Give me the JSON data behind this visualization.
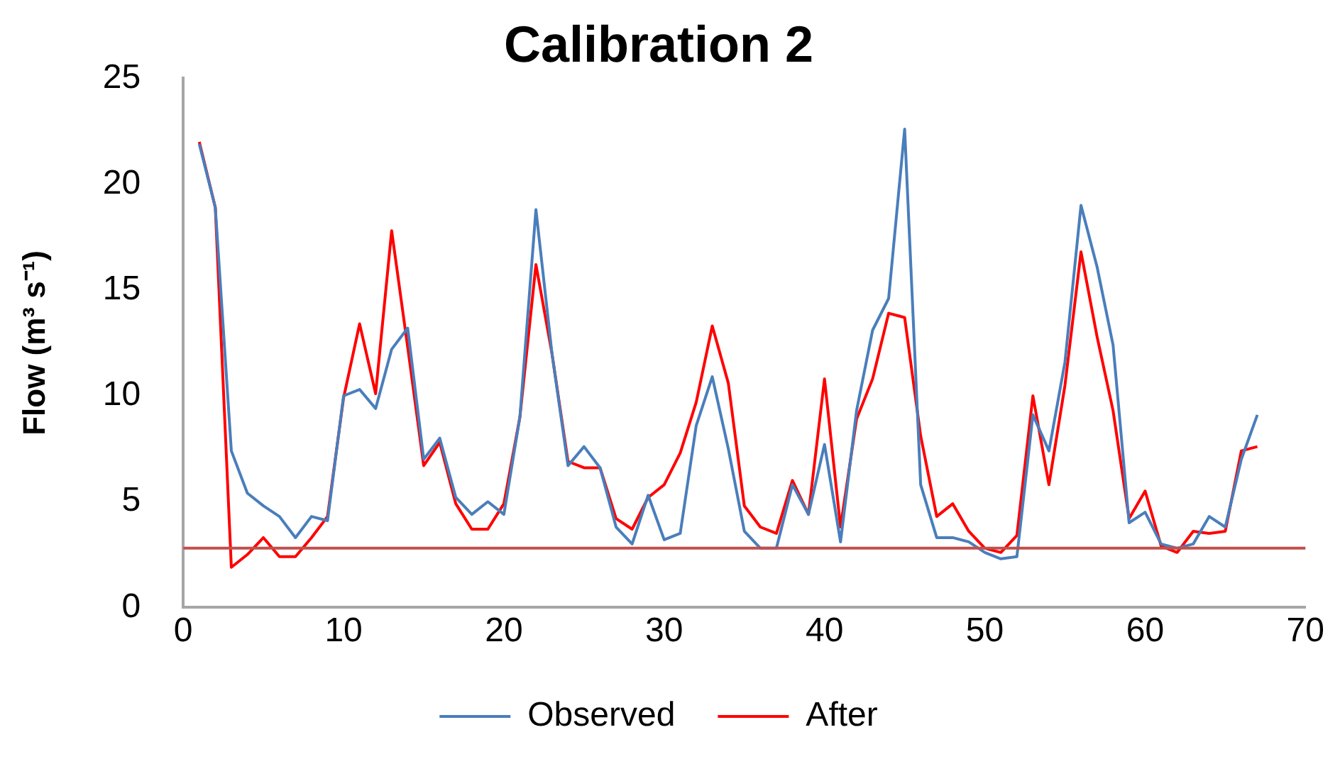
{
  "chart_data": {
    "type": "line",
    "title": "Calibration 2",
    "ylabel": "Flow (m³ s⁻¹)",
    "x": [
      1,
      2,
      3,
      4,
      5,
      6,
      7,
      8,
      9,
      10,
      11,
      12,
      13,
      14,
      15,
      16,
      17,
      18,
      19,
      20,
      21,
      22,
      23,
      24,
      25,
      26,
      27,
      28,
      29,
      30,
      31,
      32,
      33,
      34,
      35,
      36,
      37,
      38,
      39,
      40,
      41,
      42,
      43,
      44,
      45,
      46,
      47,
      48,
      49,
      50,
      51,
      52,
      53,
      54,
      55,
      56,
      57,
      58,
      59,
      60,
      61,
      62,
      63,
      64,
      65,
      66,
      67
    ],
    "series": [
      {
        "name": "Observed",
        "color": "#4a7ebb",
        "values": [
          21.9,
          18.9,
          7.4,
          5.4,
          4.8,
          4.3,
          3.3,
          4.3,
          4.1,
          10.0,
          10.3,
          9.4,
          12.2,
          13.2,
          7.0,
          8.0,
          5.2,
          4.4,
          5.0,
          4.4,
          9.0,
          18.8,
          12.0,
          6.7,
          7.6,
          6.6,
          3.8,
          3.0,
          5.3,
          3.2,
          3.5,
          8.6,
          10.9,
          7.5,
          3.6,
          2.8,
          2.8,
          5.8,
          4.4,
          7.7,
          3.1,
          9.3,
          13.1,
          14.6,
          22.6,
          5.8,
          3.3,
          3.3,
          3.1,
          2.6,
          2.3,
          2.4,
          9.1,
          7.4,
          11.6,
          19.0,
          16.1,
          12.4,
          4.0,
          4.5,
          3.0,
          2.8,
          3.0,
          4.3,
          3.8,
          7.0,
          9.1
        ]
      },
      {
        "name": "After",
        "color": "#ff0000",
        "values": [
          22.0,
          18.9,
          1.9,
          2.5,
          3.3,
          2.4,
          2.4,
          3.3,
          4.3,
          9.9,
          13.4,
          10.1,
          17.8,
          12.3,
          6.7,
          7.8,
          4.9,
          3.7,
          3.7,
          4.9,
          9.0,
          16.2,
          12.0,
          6.9,
          6.6,
          6.6,
          4.2,
          3.7,
          5.2,
          5.8,
          7.3,
          9.7,
          13.3,
          10.6,
          4.8,
          3.8,
          3.5,
          6.0,
          4.4,
          10.8,
          3.8,
          8.9,
          10.8,
          13.9,
          13.7,
          8.1,
          4.3,
          4.9,
          3.6,
          2.8,
          2.6,
          3.4,
          10.0,
          5.8,
          10.5,
          16.8,
          12.8,
          9.3,
          4.2,
          5.5,
          2.9,
          2.6,
          3.6,
          3.5,
          3.6,
          7.4,
          7.6
        ]
      }
    ],
    "xlim": [
      0,
      70
    ],
    "xticks": [
      0,
      10,
      20,
      30,
      40,
      50,
      60,
      70
    ],
    "ylim": [
      0,
      25
    ],
    "yticks": [
      0,
      5,
      10,
      15,
      20,
      25
    ],
    "ref_lines": [
      {
        "axis": "y",
        "value": 2.8,
        "color": "#c0504d"
      }
    ],
    "grid": false,
    "legend": "bottom",
    "marker": "none",
    "line_style": "solid"
  }
}
